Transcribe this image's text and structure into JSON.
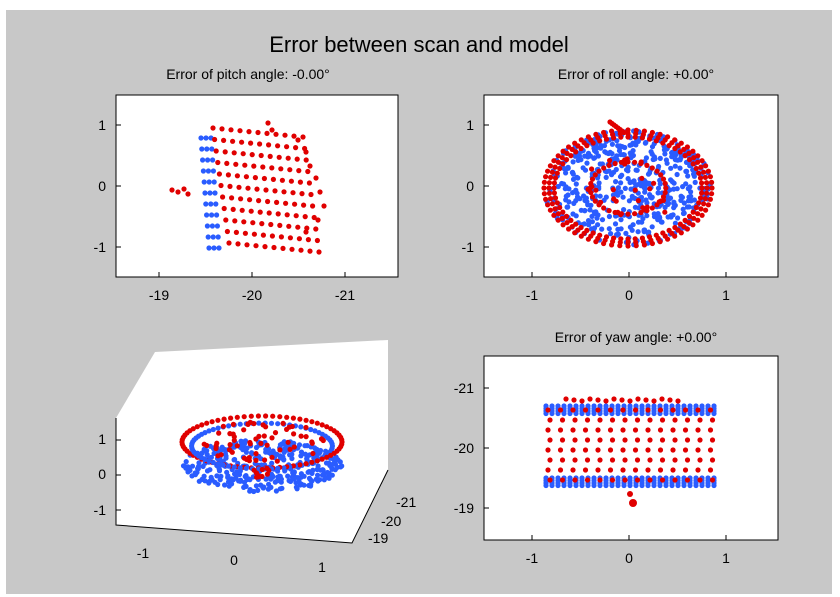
{
  "figure": {
    "title": "Error between scan and model",
    "colors": {
      "background": "#c8c8c8",
      "axes": "#ffffff",
      "scan": "#e00000",
      "model": "#2a5cff"
    }
  },
  "chart_data": [
    {
      "type": "scatter",
      "title": "Error of pitch angle: -0.00°",
      "view": "side",
      "x_ticks": [
        "-19",
        "-20",
        "-21"
      ],
      "y_ticks": [
        "1",
        "0",
        "-1"
      ],
      "xlim": [
        -18.5,
        -21.3
      ],
      "ylim": [
        -1.45,
        1.2
      ],
      "grid": false,
      "series": [
        {
          "color": "#2a5cff",
          "shape": "box_side",
          "center": [
            -20.05,
            -0.05
          ],
          "extent": [
            0.55,
            0.85
          ]
        },
        {
          "color": "#e00000",
          "shape": "box_side",
          "center": [
            -20.1,
            0.0
          ],
          "extent": [
            0.5,
            0.82
          ]
        }
      ]
    },
    {
      "type": "scatter",
      "title": "Error of roll angle: +0.00°",
      "view": "top",
      "x_ticks": [
        "-1",
        "0",
        "1"
      ],
      "y_ticks": [
        "1",
        "0",
        "-1"
      ],
      "xlim": [
        -1.4,
        1.55
      ],
      "ylim": [
        -1.45,
        1.2
      ],
      "grid": false,
      "series": [
        {
          "color": "#2a5cff",
          "shape": "disc",
          "center": [
            -0.05,
            -0.05
          ],
          "extent": [
            0.88,
            0.85
          ]
        },
        {
          "color": "#e00000",
          "shape": "ring",
          "center": [
            -0.05,
            -0.02
          ],
          "extent": [
            0.9,
            0.86
          ]
        }
      ]
    },
    {
      "type": "scatter",
      "title": "",
      "view": "3d",
      "x_ticks": [
        "-1",
        "0",
        "1"
      ],
      "y_ticks": [
        "1",
        "0",
        "-1"
      ],
      "z_ticks": [
        "-21",
        "-20",
        "-19"
      ],
      "grid": false,
      "series": [
        {
          "color": "#2a5cff",
          "shape": "cylinder"
        },
        {
          "color": "#e00000",
          "shape": "cylinder"
        }
      ]
    },
    {
      "type": "scatter",
      "title": "Error of yaw angle: +0.00°",
      "view": "front",
      "x_ticks": [
        "-1",
        "0",
        "1"
      ],
      "y_ticks": [
        "-21",
        "-20",
        "-19"
      ],
      "xlim": [
        -1.4,
        1.55
      ],
      "ylim": [
        -18.55,
        -21.4
      ],
      "grid": false,
      "series": [
        {
          "color": "#2a5cff",
          "shape": "box_front",
          "center": [
            0.0,
            -20.0
          ],
          "extent": [
            0.9,
            0.58
          ]
        },
        {
          "color": "#e00000",
          "shape": "box_front",
          "center": [
            0.0,
            -20.02
          ],
          "extent": [
            0.9,
            0.62
          ]
        }
      ]
    }
  ]
}
